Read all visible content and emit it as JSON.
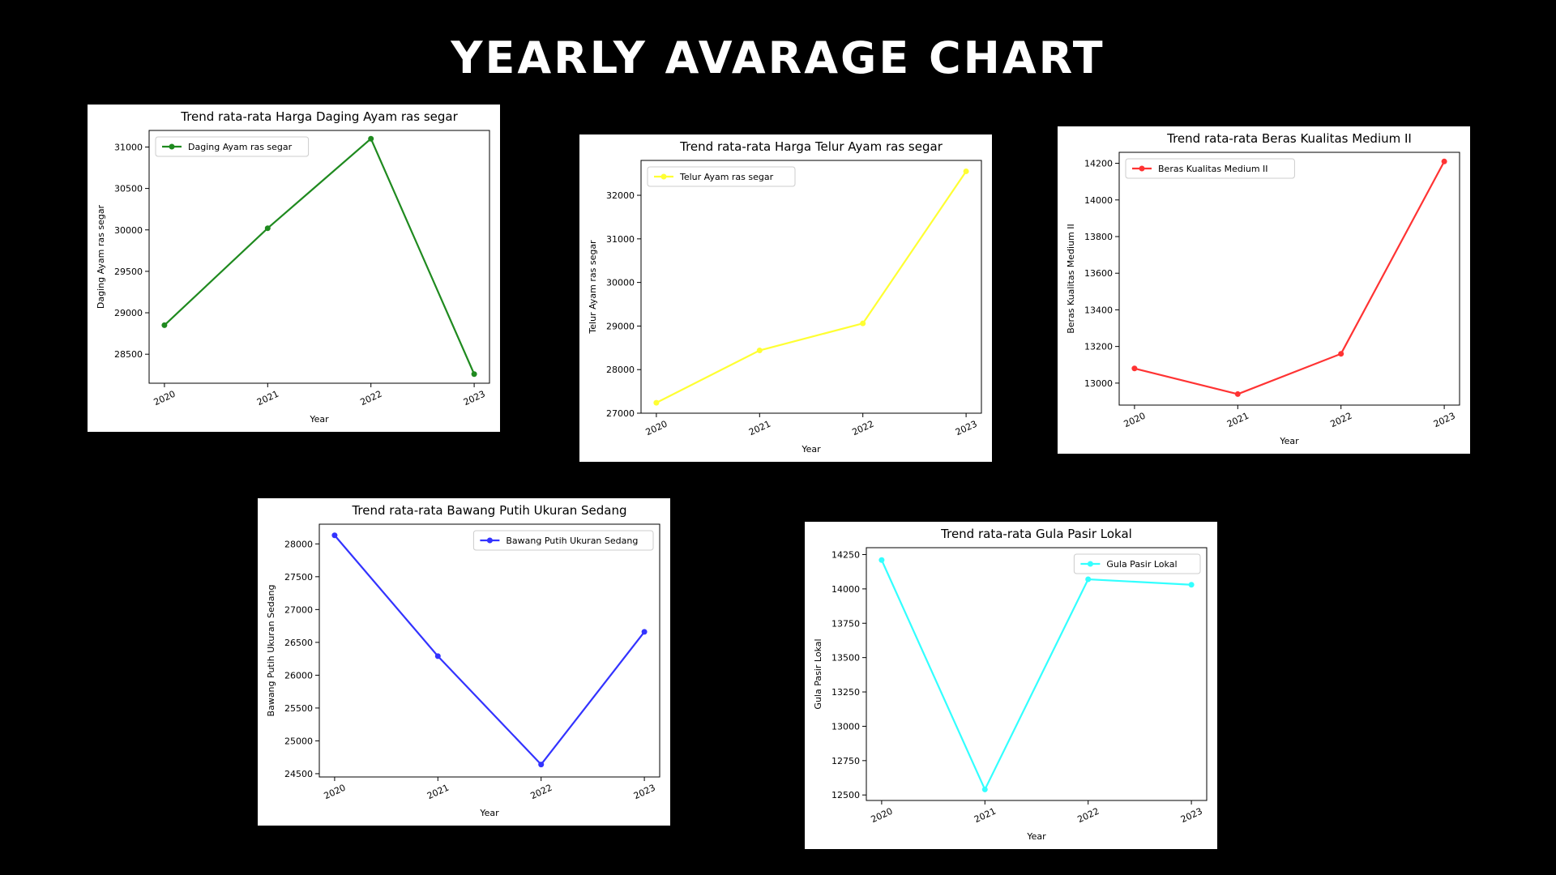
{
  "page": {
    "title": "YEARLY AVARAGE CHART"
  },
  "chart_data": [
    {
      "type": "line",
      "title": "Trend rata-rata Harga Daging Ayam ras segar",
      "xlabel": "Year",
      "ylabel": "Daging Ayam ras segar",
      "categories": [
        "2020",
        "2021",
        "2022",
        "2023"
      ],
      "series": [
        {
          "name": "Daging Ayam ras segar",
          "values": [
            28850,
            30020,
            31100,
            28260
          ],
          "color": "#1f8a1f"
        }
      ],
      "ylim": [
        28150,
        31200
      ],
      "yticks": [
        28500,
        29000,
        29500,
        30000,
        30500,
        31000
      ],
      "legend": "top-left",
      "grid": false
    },
    {
      "type": "line",
      "title": "Trend rata-rata Harga Telur Ayam ras segar",
      "xlabel": "Year",
      "ylabel": "Telur Ayam ras segar",
      "categories": [
        "2020",
        "2021",
        "2022",
        "2023"
      ],
      "series": [
        {
          "name": "Telur Ayam ras segar",
          "values": [
            27240,
            28440,
            29060,
            32550
          ],
          "color": "#ffff33"
        }
      ],
      "ylim": [
        27000,
        32800
      ],
      "yticks": [
        27000,
        28000,
        29000,
        30000,
        31000,
        32000
      ],
      "legend": "top-left",
      "grid": false
    },
    {
      "type": "line",
      "title": "Trend rata-rata Beras Kualitas Medium II",
      "xlabel": "Year",
      "ylabel": "Beras Kualitas Medium II",
      "categories": [
        "2020",
        "2021",
        "2022",
        "2023"
      ],
      "series": [
        {
          "name": "Beras Kualitas Medium II",
          "values": [
            13080,
            12940,
            13160,
            14210
          ],
          "color": "#ff3333"
        }
      ],
      "ylim": [
        12880,
        14260
      ],
      "yticks": [
        13000,
        13200,
        13400,
        13600,
        13800,
        14000,
        14200
      ],
      "legend": "top-left",
      "grid": false
    },
    {
      "type": "line",
      "title": "Trend rata-rata Bawang Putih Ukuran Sedang",
      "xlabel": "Year",
      "ylabel": "Bawang Putih Ukuran Sedang",
      "categories": [
        "2020",
        "2021",
        "2022",
        "2023"
      ],
      "series": [
        {
          "name": "Bawang Putih Ukuran Sedang",
          "values": [
            28130,
            26290,
            24640,
            26660
          ],
          "color": "#3333ff"
        }
      ],
      "ylim": [
        24450,
        28300
      ],
      "yticks": [
        24500,
        25000,
        25500,
        26000,
        26500,
        27000,
        27500,
        28000
      ],
      "legend": "top-right",
      "grid": false
    },
    {
      "type": "line",
      "title": "Trend rata-rata Gula Pasir Lokal",
      "xlabel": "Year",
      "ylabel": "Gula Pasir Lokal",
      "categories": [
        "2020",
        "2021",
        "2022",
        "2023"
      ],
      "series": [
        {
          "name": "Gula Pasir Lokal",
          "values": [
            14210,
            12540,
            14070,
            14030
          ],
          "color": "#33ffff"
        }
      ],
      "ylim": [
        12460,
        14300
      ],
      "yticks": [
        12500,
        12750,
        13000,
        13250,
        13500,
        13750,
        14000,
        14250
      ],
      "legend": "top-right",
      "grid": false
    }
  ]
}
